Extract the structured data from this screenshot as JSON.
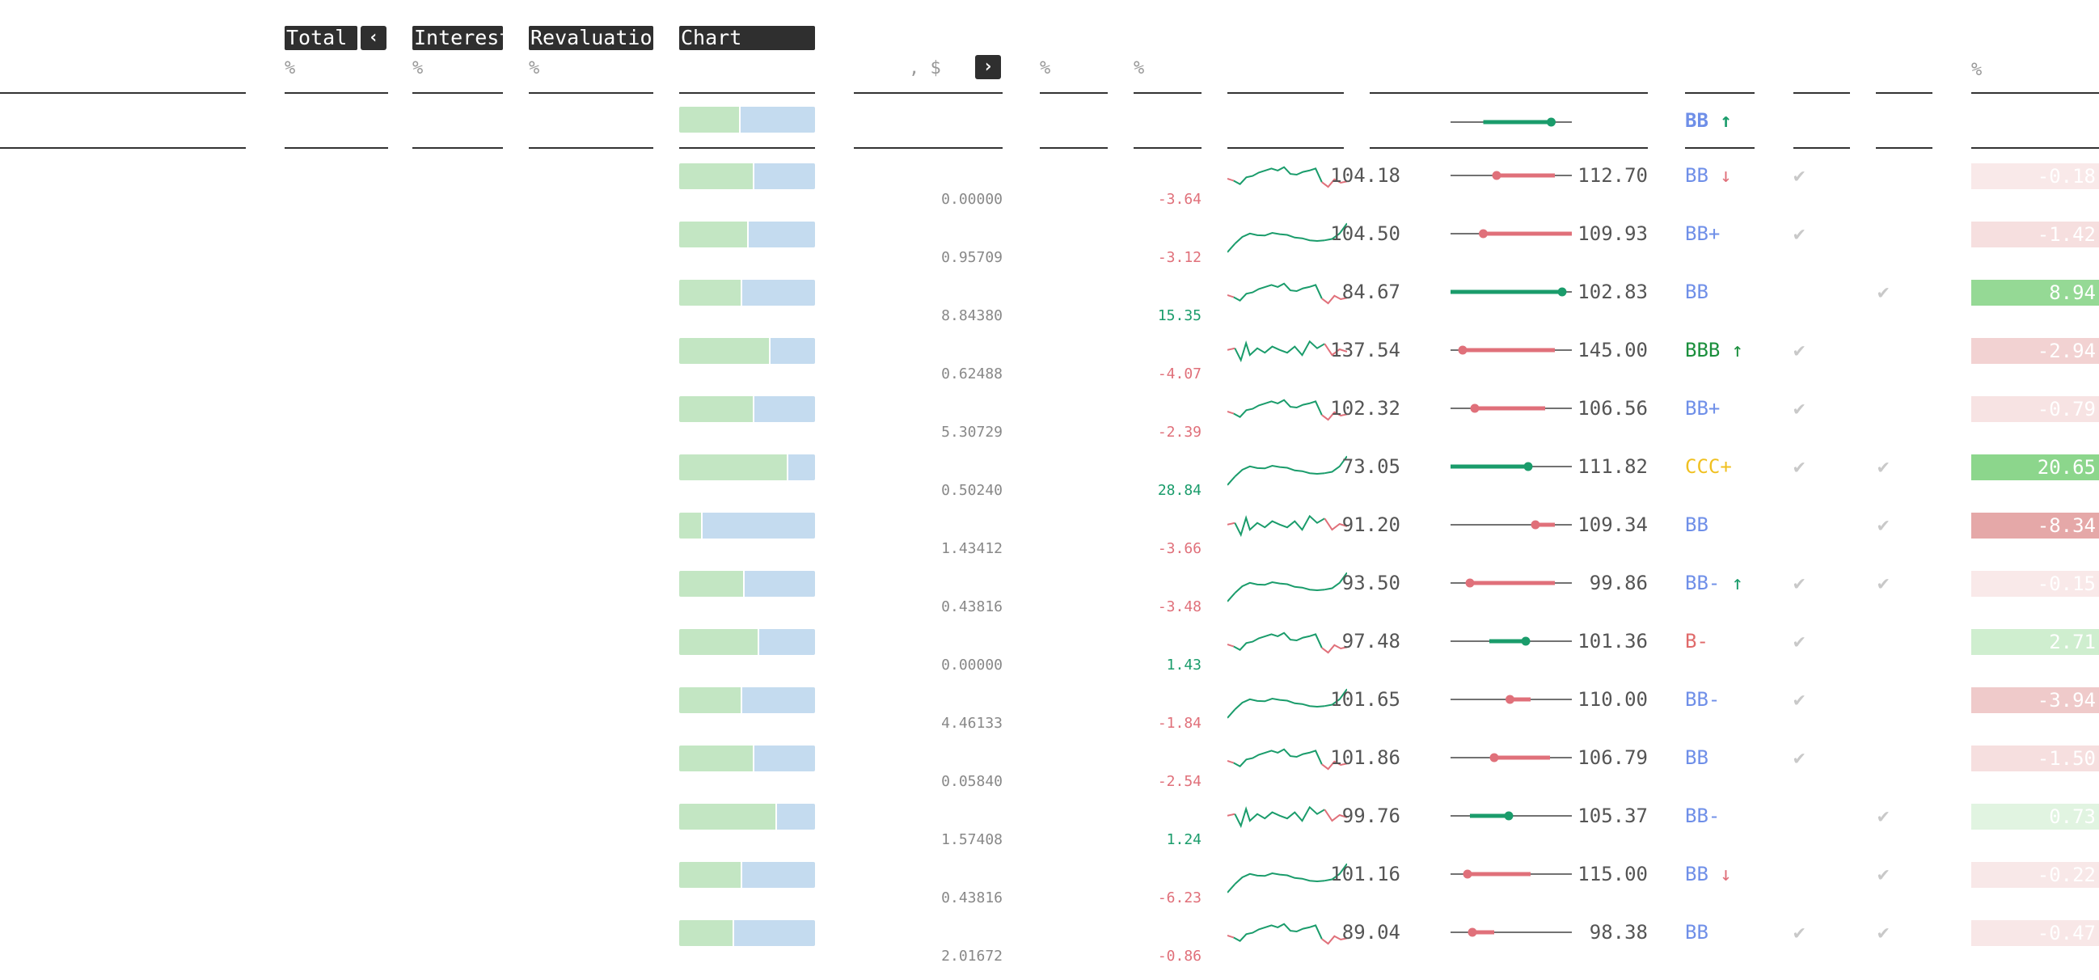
{
  "header": {
    "tabs": [
      {
        "name": "tab-total",
        "label": "Total"
      },
      {
        "name": "tab-interest",
        "label": "Interest"
      },
      {
        "name": "tab-revaluation",
        "label": "Revaluation"
      },
      {
        "name": "tab-chart",
        "label": "Chart"
      }
    ],
    "prev_icon": "chevron-left-icon",
    "next_icon": "chevron-right-icon",
    "units": {
      "total": "%",
      "interest": "%",
      "revaluation": "%",
      "amount": ", $",
      "col1": "%",
      "col2": "%",
      "pct": "%"
    },
    "summary": {
      "rating": "BB",
      "rating_arrow": "↑",
      "range_fraction": 0.83,
      "range_fill_from": 0.27
    }
  },
  "colors": {
    "positive": "#1a9c6b",
    "negative": "#e0707a",
    "rating_default": "#6f8fe8",
    "rating_invest": "#1a8f3c",
    "rating_junk_ccc": "#f0c020",
    "rating_b": "#e06a6a",
    "pos_cell": "#7cd07c",
    "neg_cell": "#dd8c8c"
  },
  "rows": [
    {
      "split": 0.54,
      "amount": "0.00000",
      "change": "-3.64",
      "dir": "neg",
      "spark": "a",
      "low": "104.18",
      "high": "112.70",
      "pos": 0.38,
      "fillFrom": 0.38,
      "fillTo": 0.86,
      "fillDir": "neg",
      "rating": "BB",
      "arrow": "↓",
      "arrowDir": "neg",
      "ratingClass": "default",
      "check1": true,
      "check2": false,
      "pct": "-0.18",
      "pctVal": -0.18
    },
    {
      "split": 0.5,
      "amount": "0.95709",
      "change": "-3.12",
      "dir": "neg",
      "spark": "b",
      "low": "104.50",
      "high": "109.93",
      "pos": 0.27,
      "fillFrom": 0.27,
      "fillTo": 1.0,
      "fillDir": "neg",
      "rating": "BB+",
      "arrow": "",
      "arrowDir": "",
      "ratingClass": "default",
      "check1": true,
      "check2": false,
      "pct": "-1.42",
      "pctVal": -1.42
    },
    {
      "split": 0.45,
      "amount": "8.84380",
      "change": "15.35",
      "dir": "pos",
      "spark": "a",
      "low": "84.67",
      "high": "102.83",
      "pos": 0.92,
      "fillFrom": 0.0,
      "fillTo": 0.92,
      "fillDir": "pos",
      "rating": "BB",
      "arrow": "",
      "arrowDir": "",
      "ratingClass": "default",
      "check1": false,
      "check2": true,
      "pct": "8.94",
      "pctVal": 8.94
    },
    {
      "split": 0.66,
      "amount": "0.62488",
      "change": "-4.07",
      "dir": "neg",
      "spark": "c",
      "low": "137.54",
      "high": "145.00",
      "pos": 0.1,
      "fillFrom": 0.1,
      "fillTo": 0.86,
      "fillDir": "neg",
      "rating": "BBB",
      "arrow": "↑",
      "arrowDir": "invest",
      "ratingClass": "invest",
      "check1": true,
      "check2": false,
      "pct": "-2.94",
      "pctVal": -2.94
    },
    {
      "split": 0.54,
      "amount": "5.30729",
      "change": "-2.39",
      "dir": "neg",
      "spark": "a",
      "low": "102.32",
      "high": "106.56",
      "pos": 0.2,
      "fillFrom": 0.2,
      "fillTo": 0.78,
      "fillDir": "neg",
      "rating": "BB+",
      "arrow": "",
      "arrowDir": "",
      "ratingClass": "default",
      "check1": true,
      "check2": false,
      "pct": "-0.79",
      "pctVal": -0.79
    },
    {
      "split": 0.79,
      "amount": "0.50240",
      "change": "28.84",
      "dir": "pos",
      "spark": "b",
      "low": "73.05",
      "high": "111.82",
      "pos": 0.64,
      "fillFrom": 0.0,
      "fillTo": 0.64,
      "fillDir": "pos",
      "rating": "CCC+",
      "arrow": "",
      "arrowDir": "",
      "ratingClass": "ccc",
      "check1": true,
      "check2": true,
      "pct": "20.65",
      "pctVal": 20.65
    },
    {
      "split": 0.16,
      "amount": "1.43412",
      "change": "-3.66",
      "dir": "neg",
      "spark": "c",
      "low": "91.20",
      "high": "109.34",
      "pos": 0.7,
      "fillFrom": 0.7,
      "fillTo": 0.86,
      "fillDir": "neg",
      "rating": "BB",
      "arrow": "",
      "arrowDir": "",
      "ratingClass": "default",
      "check1": false,
      "check2": true,
      "pct": "-8.34",
      "pctVal": -8.34
    },
    {
      "split": 0.47,
      "amount": "0.43816",
      "change": "-3.48",
      "dir": "neg",
      "spark": "b",
      "low": "93.50",
      "high": "99.86",
      "pos": 0.16,
      "fillFrom": 0.16,
      "fillTo": 0.86,
      "fillDir": "neg",
      "rating": "BB-",
      "arrow": "↑",
      "arrowDir": "pos",
      "ratingClass": "default",
      "check1": true,
      "check2": true,
      "pct": "-0.15",
      "pctVal": -0.15
    },
    {
      "split": 0.58,
      "amount": "0.00000",
      "change": "1.43",
      "dir": "pos",
      "spark": "a",
      "low": "97.48",
      "high": "101.36",
      "pos": 0.62,
      "fillFrom": 0.32,
      "fillTo": 0.62,
      "fillDir": "pos",
      "rating": "B-",
      "arrow": "",
      "arrowDir": "",
      "ratingClass": "b",
      "check1": true,
      "check2": false,
      "pct": "2.71",
      "pctVal": 2.71
    },
    {
      "split": 0.45,
      "amount": "4.46133",
      "change": "-1.84",
      "dir": "neg",
      "spark": "b",
      "low": "101.65",
      "high": "110.00",
      "pos": 0.49,
      "fillFrom": 0.49,
      "fillTo": 0.66,
      "fillDir": "neg",
      "rating": "BB-",
      "arrow": "",
      "arrowDir": "",
      "ratingClass": "default",
      "check1": true,
      "check2": false,
      "pct": "-3.94",
      "pctVal": -3.94
    },
    {
      "split": 0.54,
      "amount": "0.05840",
      "change": "-2.54",
      "dir": "neg",
      "spark": "a",
      "low": "101.86",
      "high": "106.79",
      "pos": 0.36,
      "fillFrom": 0.36,
      "fillTo": 0.82,
      "fillDir": "neg",
      "rating": "BB",
      "arrow": "",
      "arrowDir": "",
      "ratingClass": "default",
      "check1": true,
      "check2": false,
      "pct": "-1.50",
      "pctVal": -1.5
    },
    {
      "split": 0.71,
      "amount": "1.57408",
      "change": "1.24",
      "dir": "pos",
      "spark": "c",
      "low": "99.76",
      "high": "105.37",
      "pos": 0.48,
      "fillFrom": 0.16,
      "fillTo": 0.48,
      "fillDir": "pos",
      "rating": "BB-",
      "arrow": "",
      "arrowDir": "",
      "ratingClass": "default",
      "check1": false,
      "check2": true,
      "pct": "0.73",
      "pctVal": 0.73
    },
    {
      "split": 0.45,
      "amount": "0.43816",
      "change": "-6.23",
      "dir": "neg",
      "spark": "b",
      "low": "101.16",
      "high": "115.00",
      "pos": 0.14,
      "fillFrom": 0.14,
      "fillTo": 0.66,
      "fillDir": "neg",
      "rating": "BB",
      "arrow": "↓",
      "arrowDir": "neg",
      "ratingClass": "default",
      "check1": false,
      "check2": true,
      "pct": "-0.22",
      "pctVal": -0.22
    },
    {
      "split": 0.39,
      "amount": "2.01672",
      "change": "-0.86",
      "dir": "neg",
      "spark": "a",
      "low": "89.04",
      "high": "98.38",
      "pos": 0.18,
      "fillFrom": 0.18,
      "fillTo": 0.36,
      "fillDir": "neg",
      "rating": "BB",
      "arrow": "",
      "arrowDir": "",
      "ratingClass": "default",
      "check1": true,
      "check2": true,
      "pct": "-0.47",
      "pctVal": -0.47
    }
  ]
}
